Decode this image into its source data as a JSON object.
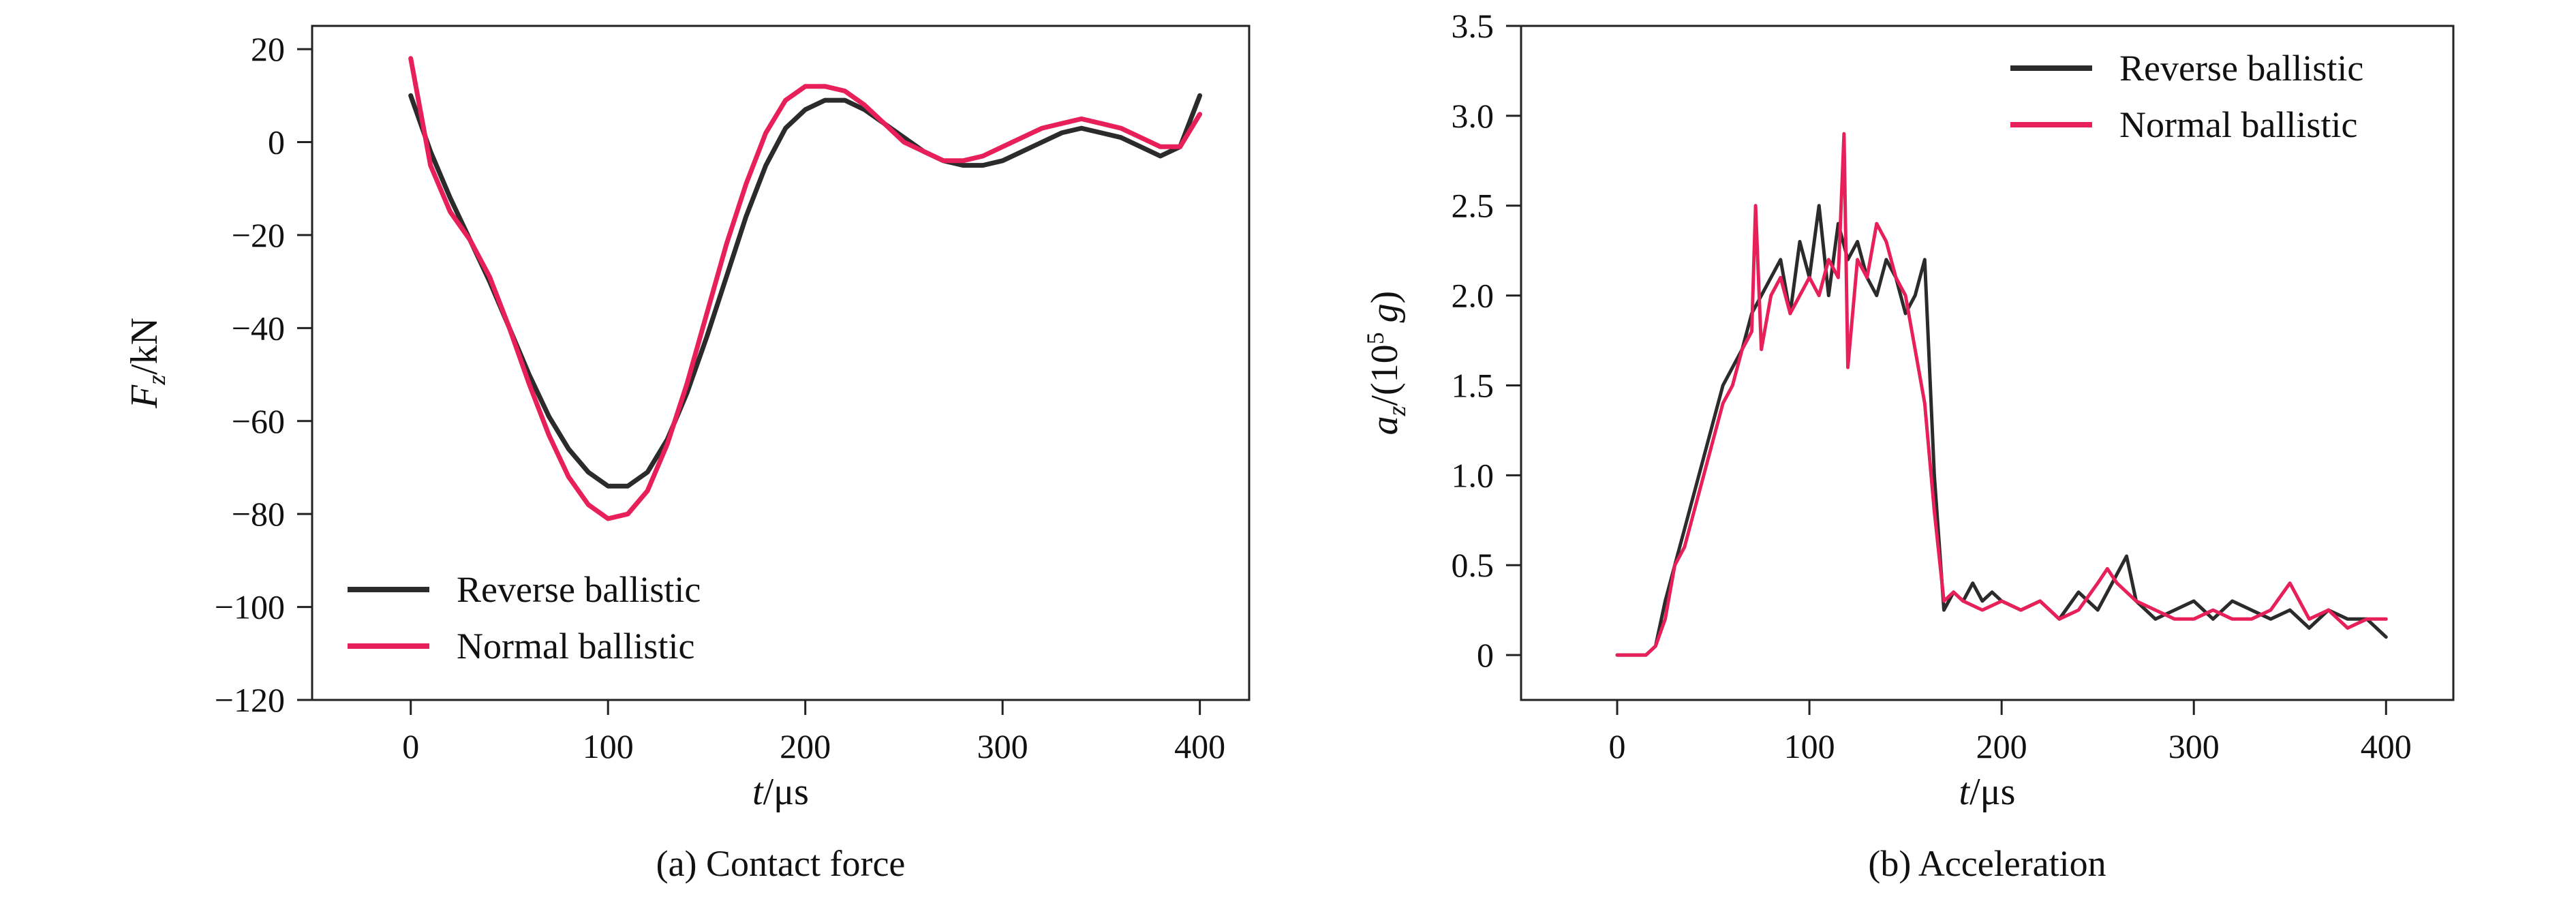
{
  "chart_data": [
    {
      "type": "line",
      "panel": "a",
      "caption": "(a) Contact force",
      "xlabel": {
        "main": "t",
        "unit": "/μs"
      },
      "ylabel": {
        "main": "F",
        "sub": "z",
        "unit": "/kN"
      },
      "xlim": [
        -50,
        425
      ],
      "ylim": [
        -120,
        25
      ],
      "xticks": [
        0,
        100,
        200,
        300,
        400
      ],
      "yticks": [
        -120,
        -100,
        -80,
        -60,
        -40,
        -20,
        0,
        20
      ],
      "grid": false,
      "legend_position": "lower-left",
      "series": [
        {
          "name": "Reverse ballistic",
          "color": "#2b2b2b",
          "x": [
            0,
            10,
            20,
            30,
            40,
            50,
            60,
            70,
            80,
            90,
            100,
            110,
            120,
            130,
            140,
            150,
            160,
            170,
            180,
            190,
            200,
            210,
            220,
            230,
            240,
            250,
            260,
            270,
            280,
            290,
            300,
            310,
            320,
            330,
            340,
            350,
            360,
            370,
            380,
            390,
            400
          ],
          "y": [
            10,
            -2,
            -12,
            -21,
            -30,
            -40,
            -50,
            -59,
            -66,
            -71,
            -74,
            -74,
            -71,
            -64,
            -54,
            -42,
            -29,
            -16,
            -5,
            3,
            7,
            9,
            9,
            7,
            4,
            1,
            -2,
            -4,
            -5,
            -5,
            -4,
            -2,
            0,
            2,
            3,
            2,
            1,
            -1,
            -3,
            -1,
            10
          ]
        },
        {
          "name": "Normal ballistic",
          "color": "#e8205a",
          "x": [
            0,
            10,
            20,
            30,
            40,
            50,
            60,
            70,
            80,
            90,
            100,
            110,
            120,
            130,
            140,
            150,
            160,
            170,
            180,
            190,
            200,
            210,
            220,
            230,
            240,
            250,
            260,
            270,
            280,
            290,
            300,
            310,
            320,
            330,
            340,
            350,
            360,
            370,
            380,
            390,
            400
          ],
          "y": [
            18,
            -5,
            -15,
            -21,
            -29,
            -40,
            -52,
            -63,
            -72,
            -78,
            -81,
            -80,
            -75,
            -65,
            -52,
            -37,
            -22,
            -9,
            2,
            9,
            12,
            12,
            11,
            8,
            4,
            0,
            -2,
            -4,
            -4,
            -3,
            -1,
            1,
            3,
            4,
            5,
            4,
            3,
            1,
            -1,
            -1,
            6
          ]
        }
      ]
    },
    {
      "type": "line",
      "panel": "b",
      "caption": "(b) Acceleration",
      "xlabel": {
        "main": "t",
        "unit": "/μs"
      },
      "ylabel": {
        "main": "a",
        "sub": "z",
        "unit_open": "/(10",
        "sup": "5",
        "unit_close": " g)"
      },
      "xlim": [
        -50,
        435
      ],
      "ylim": [
        -0.25,
        3.5
      ],
      "xticks": [
        0,
        100,
        200,
        300,
        400
      ],
      "yticks": [
        0,
        0.5,
        1.0,
        1.5,
        2.0,
        2.5,
        3.0,
        3.5
      ],
      "ytick_labels": [
        "0",
        "0.5",
        "1.0",
        "1.5",
        "2.0",
        "2.5",
        "3.0",
        "3.5"
      ],
      "grid": false,
      "legend_position": "top-right",
      "series": [
        {
          "name": "Reverse ballistic",
          "color": "#2b2b2b",
          "x": [
            0,
            15,
            20,
            25,
            30,
            35,
            40,
            45,
            50,
            55,
            60,
            65,
            70,
            75,
            80,
            85,
            90,
            95,
            100,
            105,
            110,
            115,
            120,
            125,
            130,
            135,
            140,
            145,
            150,
            155,
            160,
            165,
            170,
            175,
            180,
            185,
            190,
            195,
            200,
            210,
            220,
            230,
            240,
            250,
            260,
            265,
            270,
            280,
            290,
            300,
            310,
            320,
            330,
            340,
            350,
            360,
            370,
            380,
            390,
            400
          ],
          "y": [
            0,
            0,
            0.05,
            0.3,
            0.5,
            0.7,
            0.9,
            1.1,
            1.3,
            1.5,
            1.6,
            1.7,
            1.9,
            2.0,
            2.1,
            2.2,
            1.9,
            2.3,
            2.1,
            2.5,
            2.0,
            2.4,
            2.2,
            2.3,
            2.1,
            2.0,
            2.2,
            2.1,
            1.9,
            2.0,
            2.2,
            1.0,
            0.25,
            0.35,
            0.3,
            0.4,
            0.3,
            0.35,
            0.3,
            0.25,
            0.3,
            0.2,
            0.35,
            0.25,
            0.45,
            0.55,
            0.3,
            0.2,
            0.25,
            0.3,
            0.2,
            0.3,
            0.25,
            0.2,
            0.25,
            0.15,
            0.25,
            0.2,
            0.2,
            0.1
          ]
        },
        {
          "name": "Normal ballistic",
          "color": "#e8205a",
          "x": [
            0,
            15,
            20,
            25,
            30,
            35,
            40,
            45,
            50,
            55,
            60,
            65,
            70,
            72,
            75,
            80,
            85,
            90,
            95,
            100,
            105,
            110,
            115,
            118,
            120,
            125,
            130,
            135,
            140,
            145,
            150,
            155,
            160,
            165,
            170,
            175,
            180,
            190,
            200,
            210,
            220,
            230,
            240,
            250,
            255,
            260,
            270,
            280,
            290,
            300,
            310,
            320,
            330,
            340,
            350,
            360,
            370,
            380,
            390,
            400
          ],
          "y": [
            0,
            0,
            0.05,
            0.2,
            0.5,
            0.6,
            0.8,
            1.0,
            1.2,
            1.4,
            1.5,
            1.7,
            1.8,
            2.5,
            1.7,
            2.0,
            2.1,
            1.9,
            2.0,
            2.1,
            2.0,
            2.2,
            2.1,
            2.9,
            1.6,
            2.2,
            2.1,
            2.4,
            2.3,
            2.1,
            2.0,
            1.7,
            1.4,
            0.8,
            0.3,
            0.35,
            0.3,
            0.25,
            0.3,
            0.25,
            0.3,
            0.2,
            0.25,
            0.4,
            0.48,
            0.4,
            0.3,
            0.25,
            0.2,
            0.2,
            0.25,
            0.2,
            0.2,
            0.25,
            0.4,
            0.2,
            0.25,
            0.15,
            0.2,
            0.2
          ]
        }
      ]
    }
  ]
}
